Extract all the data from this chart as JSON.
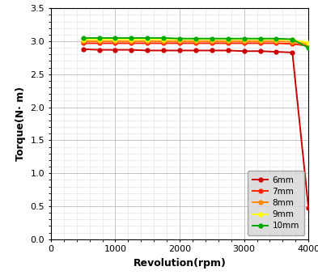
{
  "title": "",
  "xlabel": "Revolution(rpm)",
  "ylabel": "Torque(N· m)",
  "xlim": [
    0,
    4000
  ],
  "ylim": [
    0.0,
    3.5
  ],
  "xticks": [
    0,
    1000,
    2000,
    3000,
    4000
  ],
  "yticks": [
    0.0,
    0.5,
    1.0,
    1.5,
    2.0,
    2.5,
    3.0,
    3.5
  ],
  "series": [
    {
      "label": "6mm",
      "color": "#cc0000",
      "marker": "o",
      "markersize": 3.5,
      "linewidth": 1.4,
      "x": [
        500,
        750,
        1000,
        1250,
        1500,
        1750,
        2000,
        2250,
        2500,
        2750,
        3000,
        3250,
        3500,
        3750,
        4000
      ],
      "y": [
        2.88,
        2.87,
        2.87,
        2.87,
        2.86,
        2.86,
        2.86,
        2.86,
        2.86,
        2.86,
        2.85,
        2.85,
        2.84,
        2.83,
        0.47
      ]
    },
    {
      "label": "7mm",
      "color": "#ff2200",
      "marker": "o",
      "markersize": 3.5,
      "linewidth": 1.4,
      "x": [
        500,
        750,
        1000,
        1250,
        1500,
        1750,
        2000,
        2250,
        2500,
        2750,
        3000,
        3250,
        3500,
        3750,
        4000
      ],
      "y": [
        2.97,
        2.97,
        2.97,
        2.97,
        2.97,
        2.97,
        2.97,
        2.97,
        2.97,
        2.97,
        2.97,
        2.97,
        2.97,
        2.96,
        2.93
      ]
    },
    {
      "label": "8mm",
      "color": "#ff8800",
      "marker": "o",
      "markersize": 3.5,
      "linewidth": 1.4,
      "x": [
        500,
        750,
        1000,
        1250,
        1500,
        1750,
        2000,
        2250,
        2500,
        2750,
        3000,
        3250,
        3500,
        3750,
        4000
      ],
      "y": [
        3.0,
        3.0,
        3.0,
        3.0,
        3.0,
        3.0,
        3.0,
        3.0,
        3.0,
        3.0,
        3.0,
        3.0,
        3.0,
        2.99,
        2.96
      ]
    },
    {
      "label": "9mm",
      "color": "#ffff00",
      "marker": "o",
      "markersize": 3.5,
      "linewidth": 1.4,
      "x": [
        500,
        750,
        1000,
        1250,
        1500,
        1750,
        2000,
        2250,
        2500,
        2750,
        3000,
        3250,
        3500,
        3750,
        4000
      ],
      "y": [
        3.03,
        3.03,
        3.03,
        3.03,
        3.03,
        3.03,
        3.03,
        3.03,
        3.03,
        3.03,
        3.03,
        3.03,
        3.03,
        3.02,
        2.98
      ]
    },
    {
      "label": "10mm",
      "color": "#00aa00",
      "marker": "o",
      "markersize": 3.5,
      "linewidth": 1.4,
      "x": [
        500,
        750,
        1000,
        1250,
        1500,
        1750,
        2000,
        2250,
        2500,
        2750,
        3000,
        3250,
        3500,
        3750,
        4000
      ],
      "y": [
        3.05,
        3.05,
        3.05,
        3.05,
        3.05,
        3.05,
        3.04,
        3.04,
        3.04,
        3.04,
        3.04,
        3.04,
        3.04,
        3.03,
        2.9
      ]
    }
  ],
  "background_color": "#ffffff",
  "grid_major_color": "#bbbbbb",
  "grid_minor_color": "#dddddd",
  "label_fontsize": 9,
  "tick_fontsize": 8,
  "legend_fontsize": 7.5
}
